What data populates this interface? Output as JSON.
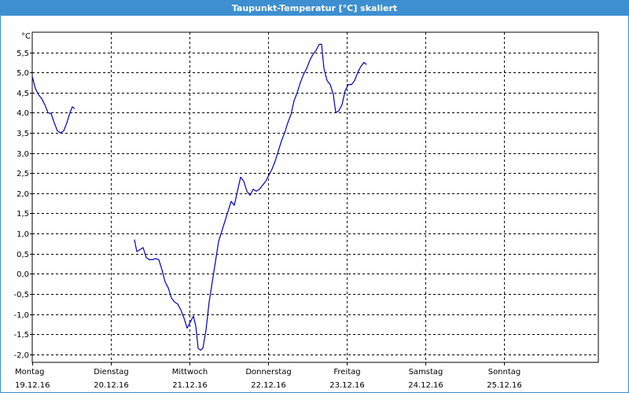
{
  "window": {
    "title": "Taupunkt-Temperatur [°C] skaliert"
  },
  "chart_data": {
    "type": "line",
    "title": "Taupunkt-Temperatur [°C] skaliert",
    "ylabel": "°C",
    "xlabel": "",
    "ylim": [
      -2.2,
      6.0
    ],
    "xlim": [
      0,
      7.2
    ],
    "grid": true,
    "y_ticks": [
      "5,5",
      "5,0",
      "4,5",
      "4,0",
      "3,5",
      "3,0",
      "2,5",
      "2,0",
      "1,5",
      "1,0",
      "0,5",
      "0,0",
      "-0,5",
      "-1,0",
      "-1,5",
      "-2,0"
    ],
    "y_tick_values": [
      5.5,
      5.0,
      4.5,
      4.0,
      3.5,
      3.0,
      2.5,
      2.0,
      1.5,
      1.0,
      0.5,
      0.0,
      -0.5,
      -1.0,
      -1.5,
      -2.0
    ],
    "x_ticks": [
      {
        "day": "Montag",
        "date": "19.12.16"
      },
      {
        "day": "Dienstag",
        "date": "20.12.16"
      },
      {
        "day": "Mittwoch",
        "date": "21.12.16"
      },
      {
        "day": "Donnerstag",
        "date": "22.12.16"
      },
      {
        "day": "Freitag",
        "date": "23.12.16"
      },
      {
        "day": "Samstag",
        "date": "24.12.16"
      },
      {
        "day": "Sonntag",
        "date": "25.12.16"
      }
    ],
    "colors": {
      "line": "#0000b4",
      "grid": "#000000",
      "title_bar": "#3d8fd1"
    },
    "series": [
      {
        "segments": [
          [
            [
              0.0,
              4.9
            ],
            [
              0.04,
              4.6
            ],
            [
              0.08,
              4.45
            ],
            [
              0.12,
              4.35
            ],
            [
              0.16,
              4.2
            ],
            [
              0.2,
              4.0
            ],
            [
              0.24,
              3.98
            ],
            [
              0.28,
              3.75
            ],
            [
              0.32,
              3.55
            ],
            [
              0.36,
              3.5
            ],
            [
              0.4,
              3.55
            ],
            [
              0.44,
              3.75
            ],
            [
              0.48,
              4.0
            ],
            [
              0.51,
              4.15
            ],
            [
              0.54,
              4.1
            ]
          ],
          [
            [
              1.3,
              0.85
            ],
            [
              1.33,
              0.55
            ],
            [
              1.37,
              0.6
            ],
            [
              1.41,
              0.65
            ],
            [
              1.45,
              0.4
            ],
            [
              1.49,
              0.35
            ],
            [
              1.53,
              0.35
            ],
            [
              1.57,
              0.38
            ],
            [
              1.61,
              0.35
            ],
            [
              1.65,
              0.1
            ],
            [
              1.69,
              -0.2
            ],
            [
              1.73,
              -0.35
            ],
            [
              1.77,
              -0.6
            ],
            [
              1.81,
              -0.7
            ],
            [
              1.85,
              -0.75
            ],
            [
              1.89,
              -0.9
            ],
            [
              1.93,
              -1.1
            ],
            [
              1.97,
              -1.35
            ],
            [
              2.01,
              -1.2
            ],
            [
              2.05,
              -1.05
            ],
            [
              2.08,
              -1.3
            ],
            [
              2.11,
              -1.85
            ],
            [
              2.14,
              -1.9
            ],
            [
              2.17,
              -1.85
            ],
            [
              2.21,
              -1.4
            ],
            [
              2.25,
              -0.7
            ],
            [
              2.29,
              -0.2
            ],
            [
              2.33,
              0.3
            ],
            [
              2.37,
              0.8
            ],
            [
              2.41,
              1.05
            ],
            [
              2.45,
              1.3
            ],
            [
              2.49,
              1.55
            ],
            [
              2.53,
              1.8
            ],
            [
              2.57,
              1.7
            ],
            [
              2.61,
              2.05
            ],
            [
              2.65,
              2.4
            ],
            [
              2.69,
              2.3
            ],
            [
              2.73,
              2.05
            ],
            [
              2.77,
              1.95
            ],
            [
              2.81,
              2.1
            ],
            [
              2.85,
              2.05
            ],
            [
              2.89,
              2.1
            ],
            [
              2.93,
              2.2
            ],
            [
              2.97,
              2.3
            ],
            [
              3.01,
              2.45
            ],
            [
              3.05,
              2.6
            ],
            [
              3.09,
              2.8
            ],
            [
              3.13,
              3.05
            ],
            [
              3.17,
              3.3
            ],
            [
              3.21,
              3.5
            ],
            [
              3.25,
              3.75
            ],
            [
              3.29,
              3.95
            ],
            [
              3.33,
              4.3
            ],
            [
              3.37,
              4.5
            ],
            [
              3.41,
              4.75
            ],
            [
              3.45,
              4.95
            ],
            [
              3.49,
              5.1
            ],
            [
              3.53,
              5.3
            ],
            [
              3.57,
              5.45
            ],
            [
              3.61,
              5.55
            ],
            [
              3.65,
              5.7
            ],
            [
              3.68,
              5.7
            ],
            [
              3.71,
              5.1
            ],
            [
              3.75,
              4.8
            ],
            [
              3.79,
              4.7
            ],
            [
              3.83,
              4.45
            ],
            [
              3.86,
              4.0
            ],
            [
              3.9,
              4.05
            ],
            [
              3.94,
              4.2
            ],
            [
              3.98,
              4.55
            ],
            [
              4.02,
              4.7
            ],
            [
              4.06,
              4.7
            ],
            [
              4.1,
              4.8
            ],
            [
              4.14,
              5.0
            ],
            [
              4.18,
              5.15
            ],
            [
              4.22,
              5.25
            ],
            [
              4.25,
              5.2
            ]
          ]
        ]
      }
    ]
  }
}
